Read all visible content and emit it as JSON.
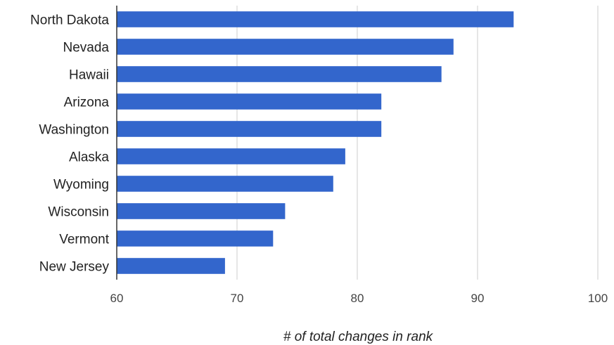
{
  "chart_data": {
    "type": "bar",
    "orientation": "horizontal",
    "categories": [
      "North Dakota",
      "Nevada",
      "Hawaii",
      "Arizona",
      "Washington",
      "Alaska",
      "Wyoming",
      "Wisconsin",
      "Vermont",
      "New Jersey"
    ],
    "values": [
      93,
      88,
      87,
      82,
      82,
      79,
      78,
      74,
      73,
      69
    ],
    "title": "",
    "xlabel": "# of total changes in rank",
    "ylabel": "",
    "xlim": [
      60,
      100
    ],
    "xticks": [
      "60",
      "70",
      "80",
      "90",
      "100"
    ],
    "grid": true,
    "legend": "none",
    "colors": {
      "bar": "#3366cc",
      "grid": "#cccccc",
      "axis": "#333333"
    }
  }
}
